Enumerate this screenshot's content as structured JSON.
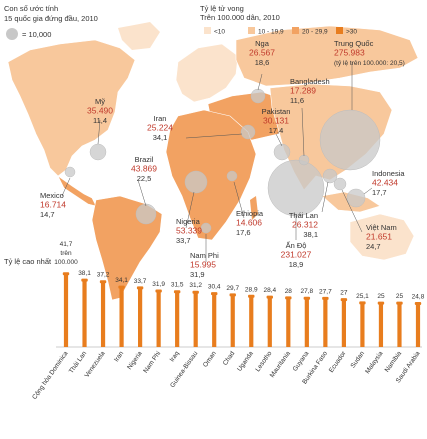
{
  "legend_left": {
    "title_line1": "Con số ước tính",
    "title_line2": "15 quốc gia đứng đầu, 2010",
    "circle_label": "= 10,000"
  },
  "legend_right": {
    "title_line1": "Tỷ lệ tử vong",
    "title_line2": "Trên 100.000 dân, 2010",
    "items": [
      {
        "label": "<10",
        "color": "#fbe3cc"
      },
      {
        "label": "10 - 19,9",
        "color": "#f8c89c"
      },
      {
        "label": "20 - 29,9",
        "color": "#f2a262"
      },
      {
        "label": ">30",
        "color": "#e87d1e"
      }
    ]
  },
  "colors": {
    "ocean": "#ffffff",
    "land": "#f8c89c",
    "bubble": "#c8c8c8",
    "bar": "#e87d1e",
    "value_red": "#c0392b"
  },
  "map_labels": [
    {
      "name": "Trung Quốc",
      "value": "275.983",
      "rate": "(tỷ lệ trên 100.000: 20,5)"
    },
    {
      "name": "Nga",
      "value": "26.567",
      "rate": "18,6"
    },
    {
      "name": "Bangladesh",
      "value": "17.289",
      "rate": "11,6"
    },
    {
      "name": "Pakistan",
      "value": "30.131",
      "rate": "17,4"
    },
    {
      "name": "Mỹ",
      "value": "35.490",
      "rate": "11,4"
    },
    {
      "name": "Iran",
      "value": "25.224",
      "rate": "34,1"
    },
    {
      "name": "Brazil",
      "value": "43.869",
      "rate": "22,5"
    },
    {
      "name": "Mexico",
      "value": "16.714",
      "rate": "14,7"
    },
    {
      "name": "Nigeria",
      "value": "53.339",
      "rate": "33,7"
    },
    {
      "name": "Nam Phi",
      "value": "15.995",
      "rate": "31,9"
    },
    {
      "name": "Ethiopia",
      "value": "14.606",
      "rate": "17,6"
    },
    {
      "name": "Ấn Độ",
      "value": "231.027",
      "rate": "18,9"
    },
    {
      "name": "Thái Lan",
      "value": "26.312",
      "rate": "38,1"
    },
    {
      "name": "Indonesia",
      "value": "42.434",
      "rate": "17,7"
    },
    {
      "name": "Việt Nam",
      "value": "21.651",
      "rate": "24,7"
    }
  ],
  "chart_data": {
    "type": "bar",
    "title": "Tỷ lệ cao nhất",
    "first_value_label": [
      "41,7",
      "trên",
      "100.000"
    ],
    "categories": [
      "Cộng hòa Dominica",
      "Thái Lan",
      "Venezuela",
      "Iran",
      "Nigeria",
      "Nam Phi",
      "Iraq",
      "Guinea-Bissau",
      "Oman",
      "Chad",
      "Uganda",
      "Lesotho",
      "Mauritania",
      "Guyana",
      "Burkina Faso",
      "Ecuador",
      "Sudan",
      "Malaysia",
      "Namibia",
      "Saudi Arabia"
    ],
    "values": [
      41.7,
      38.1,
      37.2,
      34.1,
      33.7,
      31.9,
      31.5,
      31.2,
      30.4,
      29.7,
      28.9,
      28.4,
      28,
      27.8,
      27.7,
      27,
      25.1,
      25,
      25,
      24.8
    ],
    "value_labels": [
      "41,7",
      "38,1",
      "37,2",
      "34,1",
      "33,7",
      "31,9",
      "31,5",
      "31,2",
      "30,4",
      "29,7",
      "28,9",
      "28,4",
      "28",
      "27,8",
      "27,7",
      "27",
      "25,1",
      "25",
      "25",
      "24,8"
    ],
    "ylim": [
      0,
      45
    ]
  }
}
